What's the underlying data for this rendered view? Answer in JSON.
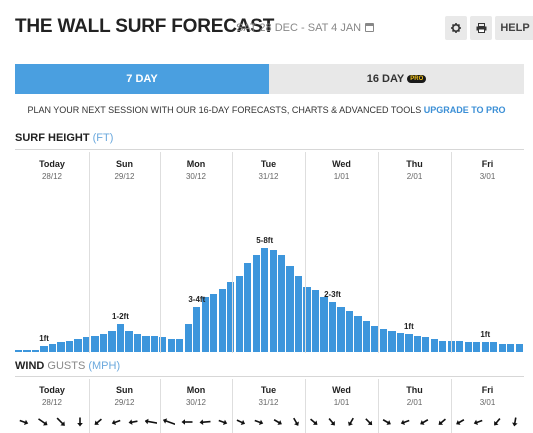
{
  "header": {
    "title": "THE WALL SURF FORECAST",
    "date_range": "SAT 28 DEC - SAT 4 JAN",
    "help_label": "HELP"
  },
  "tabs": [
    {
      "label": "7 DAY",
      "active": true
    },
    {
      "label": "16 DAY",
      "badge": "PRO",
      "active": false
    }
  ],
  "promo": {
    "text": "PLAN YOUR NEXT SESSION WITH OUR 16-DAY FORECASTS, CHARTS & ADVANCED TOOLS",
    "link": "UPGRADE TO PRO"
  },
  "surf": {
    "title": "SURF HEIGHT",
    "unit": "(FT)"
  },
  "wind": {
    "title": "WIND",
    "title_suffix": "GUSTS",
    "unit": "(MPH)"
  },
  "days": [
    {
      "name": "Today",
      "date": "28/12"
    },
    {
      "name": "Sun",
      "date": "29/12"
    },
    {
      "name": "Mon",
      "date": "30/12"
    },
    {
      "name": "Tue",
      "date": "31/12"
    },
    {
      "name": "Wed",
      "date": "1/01"
    },
    {
      "name": "Thu",
      "date": "2/01"
    },
    {
      "name": "Fri",
      "date": "3/01"
    }
  ],
  "colors": {
    "accent": "#4a9fe0",
    "bar": "#3d96dc",
    "pro_badge_bg": "#1a1a1a",
    "pro_badge_text": "#f2c21b",
    "link": "#3b8fd6"
  },
  "chart_data": {
    "type": "bar",
    "title": "SURF HEIGHT",
    "ylabel": "FT",
    "ylim": [
      0,
      8
    ],
    "series": [
      {
        "name": "SURF HEIGHT",
        "values": [
          0.1,
          0.1,
          0.1,
          0.4,
          0.5,
          0.6,
          0.7,
          0.8,
          0.9,
          1.0,
          1.1,
          1.3,
          1.7,
          1.3,
          1.1,
          1.0,
          1.0,
          0.9,
          0.8,
          0.8,
          1.7,
          2.8,
          3.4,
          3.6,
          3.9,
          4.3,
          4.7,
          5.5,
          6.0,
          6.4,
          6.3,
          6.0,
          5.3,
          4.7,
          4.0,
          3.8,
          3.4,
          3.1,
          2.8,
          2.5,
          2.2,
          1.9,
          1.6,
          1.4,
          1.3,
          1.2,
          1.1,
          1.0,
          0.9,
          0.8,
          0.7,
          0.7,
          0.7,
          0.6,
          0.6,
          0.6,
          0.6,
          0.5,
          0.5,
          0.5
        ],
        "peak_labels": [
          {
            "index": 3,
            "text": "1ft"
          },
          {
            "index": 12,
            "text": "1-2ft"
          },
          {
            "index": 21,
            "text": "3-4ft"
          },
          {
            "index": 29,
            "text": "5-8ft"
          },
          {
            "index": 37,
            "text": "2-3ft"
          },
          {
            "index": 46,
            "text": "1ft"
          },
          {
            "index": 55,
            "text": "1ft"
          }
        ]
      }
    ]
  },
  "wind_arrows": [
    {
      "rotation": 20,
      "size": "s"
    },
    {
      "rotation": 35,
      "size": "m"
    },
    {
      "rotation": 45,
      "size": "m"
    },
    {
      "rotation": 90,
      "size": "s"
    },
    {
      "rotation": 140,
      "size": "s"
    },
    {
      "rotation": 160,
      "size": "s"
    },
    {
      "rotation": 170,
      "size": "s"
    },
    {
      "rotation": 190,
      "size": "l"
    },
    {
      "rotation": 200,
      "size": "l"
    },
    {
      "rotation": 180,
      "size": "m"
    },
    {
      "rotation": 175,
      "size": "m"
    },
    {
      "rotation": 20,
      "size": "s"
    },
    {
      "rotation": 25,
      "size": "s"
    },
    {
      "rotation": 20,
      "size": "s"
    },
    {
      "rotation": 30,
      "size": "s"
    },
    {
      "rotation": 60,
      "size": "s"
    },
    {
      "rotation": 40,
      "size": "s"
    },
    {
      "rotation": 50,
      "size": "s"
    },
    {
      "rotation": 120,
      "size": "s"
    },
    {
      "rotation": 45,
      "size": "s"
    },
    {
      "rotation": 30,
      "size": "s"
    },
    {
      "rotation": 160,
      "size": "s"
    },
    {
      "rotation": 150,
      "size": "s"
    },
    {
      "rotation": 140,
      "size": "s"
    },
    {
      "rotation": 150,
      "size": "s"
    },
    {
      "rotation": 160,
      "size": "s"
    },
    {
      "rotation": 130,
      "size": "s"
    },
    {
      "rotation": 100,
      "size": "s"
    }
  ]
}
